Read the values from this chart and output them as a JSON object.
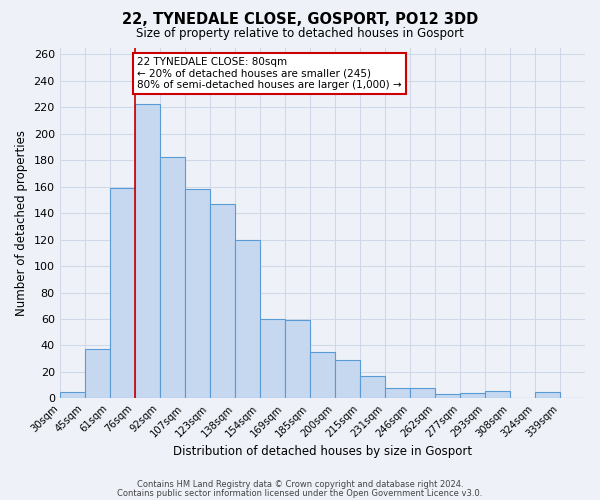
{
  "title": "22, TYNEDALE CLOSE, GOSPORT, PO12 3DD",
  "subtitle": "Size of property relative to detached houses in Gosport",
  "xlabel": "Distribution of detached houses by size in Gosport",
  "ylabel": "Number of detached properties",
  "bin_labels": [
    "30sqm",
    "45sqm",
    "61sqm",
    "76sqm",
    "92sqm",
    "107sqm",
    "123sqm",
    "138sqm",
    "154sqm",
    "169sqm",
    "185sqm",
    "200sqm",
    "215sqm",
    "231sqm",
    "246sqm",
    "262sqm",
    "277sqm",
    "293sqm",
    "308sqm",
    "324sqm",
    "339sqm"
  ],
  "bar_heights": [
    5,
    37,
    159,
    222,
    182,
    158,
    147,
    120,
    60,
    59,
    35,
    29,
    17,
    8,
    8,
    3,
    4,
    6,
    0,
    5,
    0
  ],
  "bar_color": "#c5d8f0",
  "bar_edge_color": "#5b9bd5",
  "vline_bin_index": 3,
  "vline_color": "#cc0000",
  "annotation_line1": "22 TYNEDALE CLOSE: 80sqm",
  "annotation_line2": "← 20% of detached houses are smaller (245)",
  "annotation_line3": "80% of semi-detached houses are larger (1,000) →",
  "ylim": [
    0,
    265
  ],
  "yticks": [
    0,
    20,
    40,
    60,
    80,
    100,
    120,
    140,
    160,
    180,
    200,
    220,
    240,
    260
  ],
  "grid_color": "#d0d8e8",
  "bg_color": "#eef2f8",
  "footer1": "Contains HM Land Registry data © Crown copyright and database right 2024.",
  "footer2": "Contains public sector information licensed under the Open Government Licence v3.0."
}
